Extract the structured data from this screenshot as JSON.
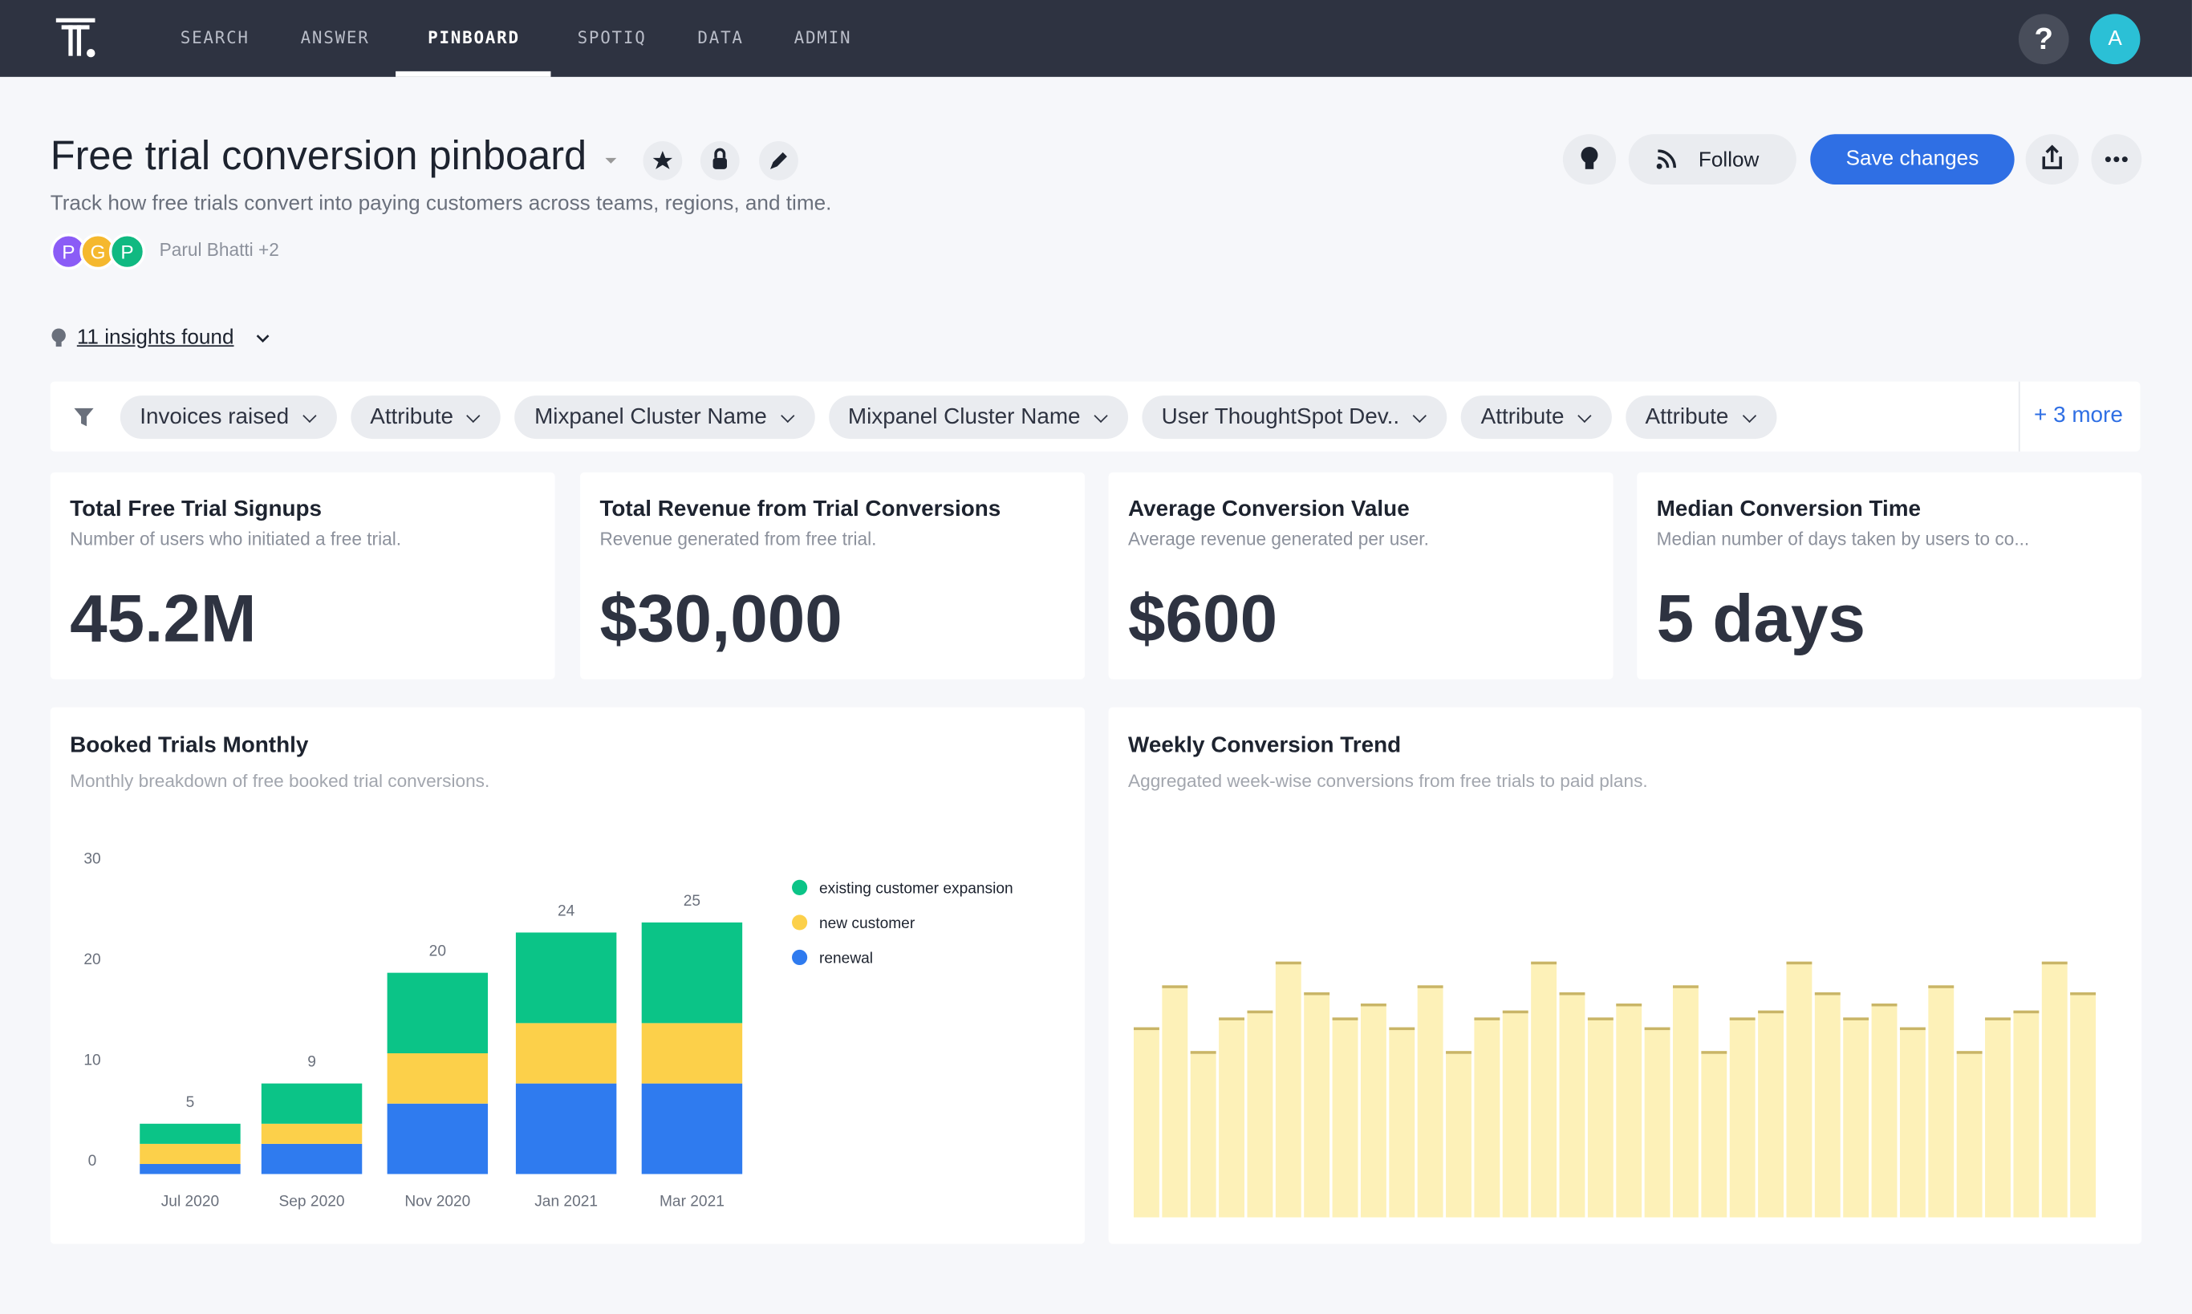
{
  "nav": {
    "items": [
      "SEARCH",
      "ANSWER",
      "PINBOARD",
      "SPOTIQ",
      "DATA",
      "ADMIN"
    ],
    "active": 2,
    "help": "?",
    "avatar": "A"
  },
  "header": {
    "title": "Free trial conversion pinboard",
    "description": "Track how free trials convert into paying customers across teams, regions, and time.",
    "avatars": [
      "P",
      "G",
      "P"
    ],
    "owners": "Parul Bhatti +2",
    "follow": "Follow",
    "save": "Save changes"
  },
  "insights": "11 insights found",
  "filters": {
    "items": [
      "Invoices raised",
      "Attribute",
      "Mixpanel Cluster Name",
      "Mixpanel Cluster Name",
      "User ThoughtSpot Dev..",
      "Attribute",
      "Attribute"
    ],
    "more": "+ 3 more"
  },
  "kpis": [
    {
      "title": "Total Free Trial Signups",
      "description": "Number of users who initiated a free trial.",
      "value": "45.2M"
    },
    {
      "title": "Total Revenue from Trial Conversions",
      "description": "Revenue generated from free trial.",
      "value": "$30,000"
    },
    {
      "title": "Average Conversion Value",
      "description": "Average revenue generated per user.",
      "value": "$600"
    },
    {
      "title": "Median Conversion Time",
      "description": "Median number of days taken by users to co...",
      "value": "5 days"
    }
  ],
  "chart_data": [
    {
      "type": "stacked_bar",
      "title": "Booked Trials Monthly",
      "subtitle": "Monthly breakdown of free booked trial conversions.",
      "categories": [
        "Jul 2020",
        "Sep 2020",
        "Nov 2020",
        "Jan 2021",
        "Mar 2021"
      ],
      "series": [
        {
          "name": "renewal",
          "color": "#2f7bef",
          "values": [
            1,
            3,
            7,
            9,
            9
          ]
        },
        {
          "name": "new customer",
          "color": "#fcd04a",
          "values": [
            2,
            2,
            5,
            6,
            6
          ]
        },
        {
          "name": "existing customer expansion",
          "color": "#0bc487",
          "values": [
            2,
            4,
            8,
            9,
            10
          ]
        }
      ],
      "totals": [
        5,
        9,
        20,
        24,
        25
      ],
      "ylim": [
        0,
        30
      ],
      "yticks": [
        0,
        10,
        20,
        30
      ],
      "legend": "right"
    },
    {
      "type": "bar",
      "title": "Weekly Conversion Trend",
      "subtitle": "Aggregated week-wise conversions from free trials to paid plans.",
      "color": "#fdf1b8",
      "edge_color": "#c9b567",
      "values": [
        136,
        166,
        119,
        143,
        148,
        183,
        161,
        143,
        153,
        136,
        166,
        119,
        143,
        148,
        183,
        161,
        143,
        153,
        136,
        166,
        119,
        143,
        148,
        183,
        161,
        143,
        153,
        136,
        166,
        119,
        143,
        148,
        183,
        161
      ],
      "ylim": [
        0,
        200
      ]
    }
  ]
}
